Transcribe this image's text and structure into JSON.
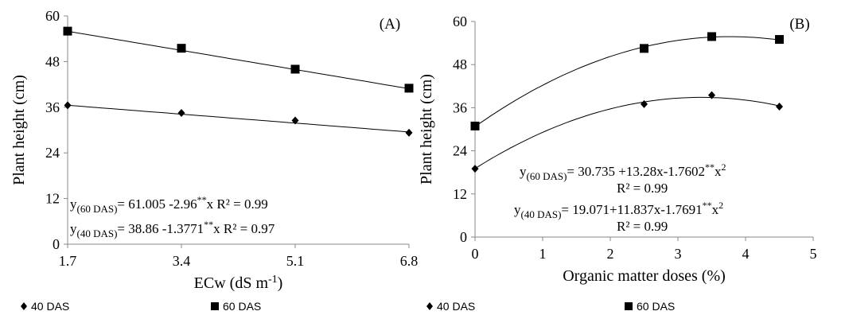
{
  "chart_data": [
    {
      "panel": "(A)",
      "type": "scatter",
      "xlabel": "ECw (dS m-1)",
      "ylabel": "Plant height (cm)",
      "x_ticks": [
        "1.7",
        "3.4",
        "5.1",
        "6.8"
      ],
      "y_ticks": [
        "0",
        "12",
        "24",
        "36",
        "48",
        "60"
      ],
      "xlim": [
        1.7,
        6.8
      ],
      "ylim": [
        0,
        60
      ],
      "x": [
        1.7,
        3.4,
        5.1,
        6.8
      ],
      "series": [
        {
          "name": "40 DAS",
          "marker": "diamond",
          "values": [
            36.5,
            34.5,
            32.5,
            29.3
          ],
          "fit": {
            "kind": "linear",
            "a": 38.86,
            "b": -1.3771
          }
        },
        {
          "name": "60 DAS",
          "marker": "square",
          "values": [
            56.0,
            51.5,
            46.0,
            41.0
          ],
          "fit": {
            "kind": "linear",
            "a": 61.005,
            "b": -2.96
          }
        }
      ],
      "equations": [
        {
          "y": "y",
          "sub": "(60 DAS)",
          "text": "= 61.005 -2.96",
          "sup": "**",
          "tail": "x R² = 0.99"
        },
        {
          "y": "y",
          "sub": "(40 DAS)",
          "text": "= 38.86 -1.3771",
          "sup": "**",
          "tail": "x R² = 0.97"
        }
      ],
      "legend": [
        "40 DAS",
        "60 DAS"
      ],
      "grid": false
    },
    {
      "panel": "(B)",
      "type": "scatter",
      "xlabel": "Organic matter doses (%)",
      "ylabel": "Plant height (cm)",
      "x_ticks": [
        "0",
        "1",
        "2",
        "3",
        "4",
        "5"
      ],
      "y_ticks": [
        "0",
        "12",
        "24",
        "36",
        "48",
        "60"
      ],
      "xlim": [
        0,
        5
      ],
      "ylim": [
        0,
        60
      ],
      "x": [
        0,
        2.5,
        3.5,
        4.5
      ],
      "series": [
        {
          "name": "40 DAS",
          "marker": "diamond",
          "values": [
            19.0,
            37.0,
            39.5,
            36.3
          ],
          "fit": {
            "kind": "quadratic",
            "a": 19.071,
            "b": 11.837,
            "c": -1.7691
          }
        },
        {
          "name": "60 DAS",
          "marker": "square",
          "values": [
            30.9,
            52.5,
            55.8,
            55.0
          ],
          "fit": {
            "kind": "quadratic",
            "a": 30.735,
            "b": 13.28,
            "c": -1.7602
          }
        }
      ],
      "equations": [
        {
          "y": "y",
          "sub": "(60 DAS)",
          "text": "=  30.735 +13.28x-1.7602",
          "sup": "**",
          "tail": "x",
          "sup2": "2"
        },
        {
          "r2": "R² = 0.99"
        },
        {
          "y": "y",
          "sub": "(40 DAS)",
          "text": "= 19.071+11.837x-1.7691",
          "sup": "**",
          "tail": "x",
          "sup2": "2"
        },
        {
          "r2": "R² = 0.99"
        }
      ],
      "legend": [
        "40 DAS",
        "60 DAS"
      ],
      "grid": false
    }
  ]
}
